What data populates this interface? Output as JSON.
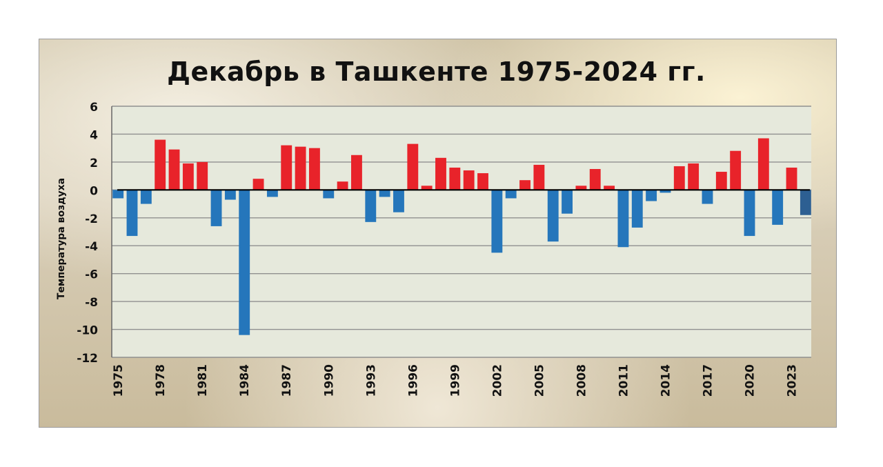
{
  "chart_data": {
    "type": "bar",
    "title": "Декабрь в Ташкенте 1975-2024 гг.",
    "ylabel": "Температура воздуха",
    "xlabel": "",
    "ylim": [
      -12,
      6
    ],
    "yticks": [
      6,
      4,
      2,
      0,
      -2,
      -4,
      -6,
      -8,
      -10,
      -12
    ],
    "xtick_labels": [
      "1975",
      "1978",
      "1981",
      "1984",
      "1987",
      "1990",
      "1993",
      "1996",
      "1999",
      "2002",
      "2005",
      "2008",
      "2011",
      "2014",
      "2017",
      "2020",
      "2023"
    ],
    "categories": [
      1975,
      1976,
      1977,
      1978,
      1979,
      1980,
      1981,
      1982,
      1983,
      1984,
      1985,
      1986,
      1987,
      1988,
      1989,
      1990,
      1991,
      1992,
      1993,
      1994,
      1995,
      1996,
      1997,
      1998,
      1999,
      2000,
      2001,
      2002,
      2003,
      2004,
      2005,
      2006,
      2007,
      2008,
      2009,
      2010,
      2011,
      2012,
      2013,
      2014,
      2015,
      2016,
      2017,
      2018,
      2019,
      2020,
      2021,
      2022,
      2023,
      2024
    ],
    "values": [
      -0.6,
      -3.3,
      -1.0,
      3.6,
      2.9,
      1.9,
      2.0,
      -2.6,
      -0.7,
      -10.4,
      0.8,
      -0.5,
      3.2,
      3.1,
      3.0,
      -0.6,
      0.6,
      2.5,
      -2.3,
      -0.5,
      -1.6,
      3.3,
      0.3,
      2.3,
      1.6,
      1.4,
      1.2,
      -4.5,
      -0.6,
      0.7,
      1.8,
      -3.7,
      -1.7,
      0.3,
      1.5,
      0.3,
      -4.1,
      -2.7,
      -0.8,
      -0.2,
      1.7,
      1.9,
      -1.0,
      1.3,
      2.8,
      -3.3,
      3.7,
      -2.5,
      1.6,
      -1.8
    ],
    "grid": true,
    "colors": {
      "positive": "#e8232a",
      "negative": "#2576bb",
      "last_bar": "#2d5f92",
      "plot_bg": "#e6e9dc",
      "grid": "#8f8f8f",
      "axis": "#000000"
    }
  }
}
